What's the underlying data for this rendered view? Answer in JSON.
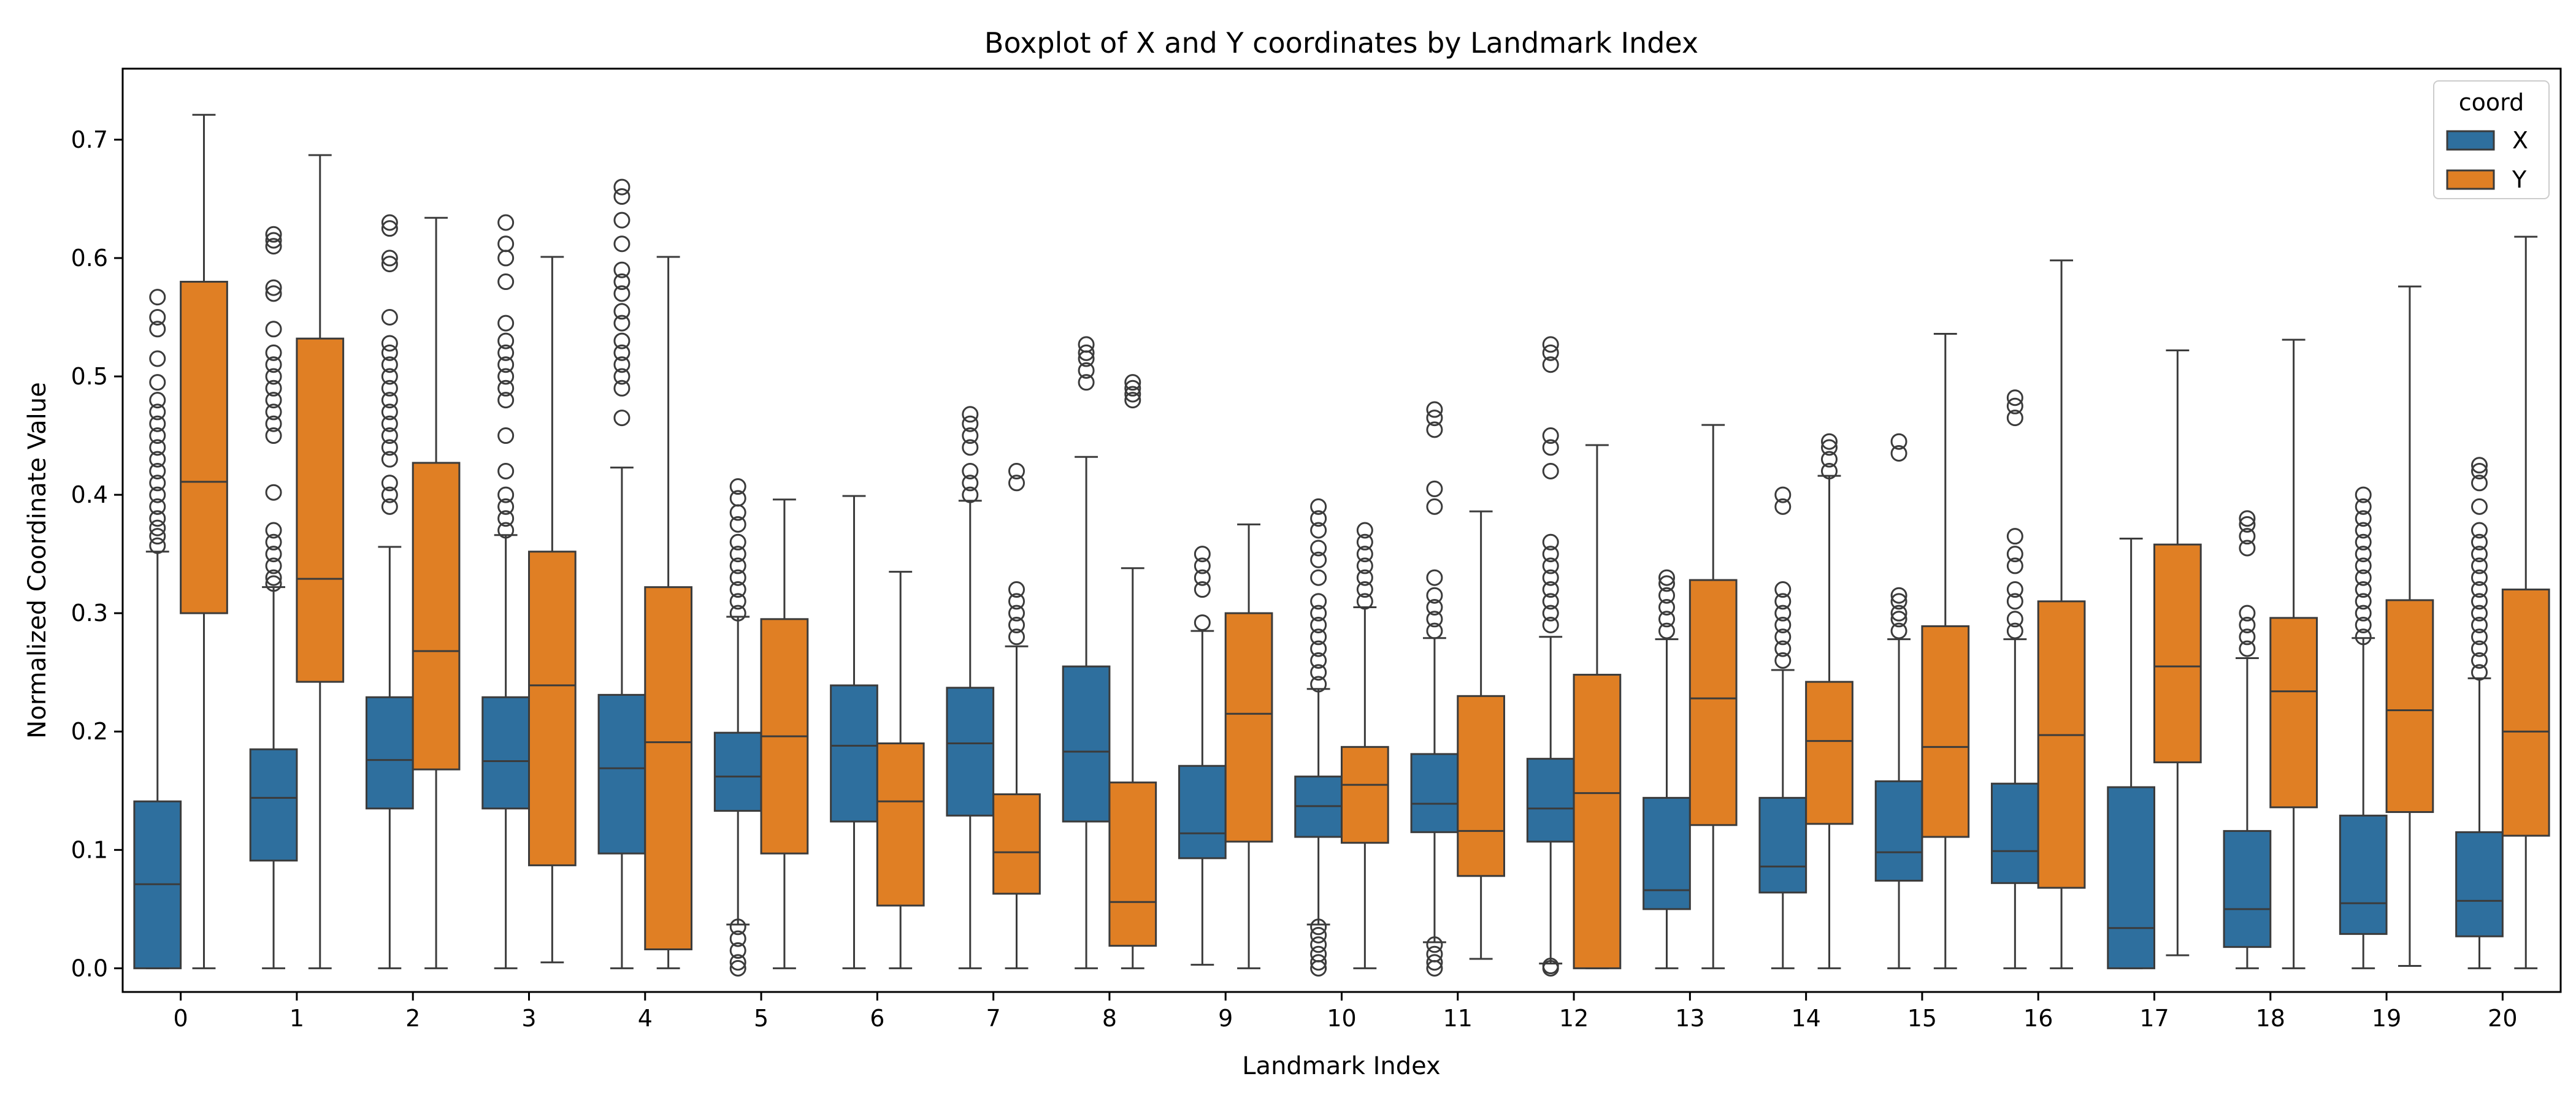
{
  "chart_data": {
    "type": "box",
    "title": "Boxplot of X and Y coordinates by Landmark Index",
    "xlabel": "Landmark Index",
    "ylabel": "Normalized Coordinate Value",
    "ylim": [
      -0.02,
      0.76
    ],
    "yticks": [
      "0.0",
      "0.1",
      "0.2",
      "0.3",
      "0.4",
      "0.5",
      "0.6",
      "0.7"
    ],
    "categories": [
      "0",
      "1",
      "2",
      "3",
      "4",
      "5",
      "6",
      "7",
      "8",
      "9",
      "10",
      "11",
      "12",
      "13",
      "14",
      "15",
      "16",
      "17",
      "18",
      "19",
      "20"
    ],
    "grid": false,
    "legend": {
      "title": "coord",
      "placement": "top-right"
    },
    "series": [
      {
        "name": "X",
        "color": "#2e6f9e",
        "boxes": [
          {
            "whisker_low": 0.0,
            "q1": 0.0,
            "median": 0.071,
            "q3": 0.141,
            "whisker_high": 0.352,
            "outliers": [
              0.357,
              0.365,
              0.372,
              0.38,
              0.39,
              0.4,
              0.41,
              0.42,
              0.43,
              0.44,
              0.45,
              0.46,
              0.47,
              0.48,
              0.495,
              0.515,
              0.54,
              0.55,
              0.567
            ]
          },
          {
            "whisker_low": 0.0,
            "q1": 0.091,
            "median": 0.144,
            "q3": 0.185,
            "whisker_high": 0.322,
            "outliers": [
              0.325,
              0.33,
              0.34,
              0.35,
              0.36,
              0.37,
              0.402,
              0.45,
              0.46,
              0.47,
              0.48,
              0.49,
              0.5,
              0.51,
              0.52,
              0.54,
              0.57,
              0.575,
              0.61,
              0.615,
              0.62
            ]
          },
          {
            "whisker_low": 0.0,
            "q1": 0.135,
            "median": 0.176,
            "q3": 0.229,
            "whisker_high": 0.356,
            "outliers": [
              0.39,
              0.4,
              0.41,
              0.43,
              0.44,
              0.45,
              0.46,
              0.47,
              0.48,
              0.49,
              0.5,
              0.51,
              0.52,
              0.528,
              0.55,
              0.595,
              0.6,
              0.625,
              0.63
            ]
          },
          {
            "whisker_low": 0.0,
            "q1": 0.135,
            "median": 0.175,
            "q3": 0.229,
            "whisker_high": 0.366,
            "outliers": [
              0.37,
              0.38,
              0.39,
              0.4,
              0.42,
              0.45,
              0.48,
              0.49,
              0.5,
              0.51,
              0.52,
              0.53,
              0.545,
              0.58,
              0.6,
              0.612,
              0.63
            ]
          },
          {
            "whisker_low": 0.0,
            "q1": 0.097,
            "median": 0.169,
            "q3": 0.231,
            "whisker_high": 0.423,
            "outliers": [
              0.465,
              0.49,
              0.5,
              0.51,
              0.52,
              0.53,
              0.545,
              0.555,
              0.57,
              0.58,
              0.59,
              0.612,
              0.632,
              0.652,
              0.66
            ]
          },
          {
            "whisker_low": 0.037,
            "q1": 0.133,
            "median": 0.162,
            "q3": 0.199,
            "whisker_high": 0.297,
            "outliers": [
              0.0,
              0.005,
              0.015,
              0.025,
              0.035,
              0.3,
              0.31,
              0.32,
              0.33,
              0.34,
              0.35,
              0.36,
              0.375,
              0.385,
              0.397,
              0.407
            ]
          },
          {
            "whisker_low": 0.0,
            "q1": 0.124,
            "median": 0.188,
            "q3": 0.239,
            "whisker_high": 0.399,
            "outliers": []
          },
          {
            "whisker_low": 0.0,
            "q1": 0.129,
            "median": 0.19,
            "q3": 0.237,
            "whisker_high": 0.395,
            "outliers": [
              0.4,
              0.41,
              0.42,
              0.44,
              0.45,
              0.46,
              0.468
            ]
          },
          {
            "whisker_low": 0.0,
            "q1": 0.124,
            "median": 0.183,
            "q3": 0.255,
            "whisker_high": 0.432,
            "outliers": [
              0.495,
              0.505,
              0.515,
              0.52,
              0.527
            ]
          },
          {
            "whisker_low": 0.003,
            "q1": 0.093,
            "median": 0.114,
            "q3": 0.171,
            "whisker_high": 0.285,
            "outliers": [
              0.292,
              0.32,
              0.33,
              0.34,
              0.35
            ]
          },
          {
            "whisker_low": 0.037,
            "q1": 0.111,
            "median": 0.137,
            "q3": 0.162,
            "whisker_high": 0.236,
            "outliers": [
              0.0,
              0.005,
              0.012,
              0.02,
              0.028,
              0.035,
              0.24,
              0.25,
              0.26,
              0.27,
              0.28,
              0.29,
              0.3,
              0.31,
              0.33,
              0.345,
              0.355,
              0.37,
              0.38,
              0.39
            ]
          },
          {
            "whisker_low": 0.022,
            "q1": 0.115,
            "median": 0.139,
            "q3": 0.181,
            "whisker_high": 0.279,
            "outliers": [
              0.0,
              0.005,
              0.012,
              0.02,
              0.285,
              0.295,
              0.305,
              0.315,
              0.33,
              0.39,
              0.405,
              0.455,
              0.465,
              0.472
            ]
          },
          {
            "whisker_low": 0.004,
            "q1": 0.107,
            "median": 0.135,
            "q3": 0.177,
            "whisker_high": 0.28,
            "outliers": [
              0.0,
              0.002,
              0.29,
              0.3,
              0.31,
              0.32,
              0.33,
              0.34,
              0.35,
              0.36,
              0.42,
              0.44,
              0.45,
              0.51,
              0.52,
              0.527
            ]
          },
          {
            "whisker_low": 0.0,
            "q1": 0.05,
            "median": 0.066,
            "q3": 0.144,
            "whisker_high": 0.278,
            "outliers": [
              0.285,
              0.295,
              0.305,
              0.315,
              0.325,
              0.33
            ]
          },
          {
            "whisker_low": 0.0,
            "q1": 0.064,
            "median": 0.086,
            "q3": 0.144,
            "whisker_high": 0.252,
            "outliers": [
              0.26,
              0.27,
              0.28,
              0.29,
              0.3,
              0.31,
              0.32,
              0.39,
              0.4
            ]
          },
          {
            "whisker_low": 0.0,
            "q1": 0.074,
            "median": 0.098,
            "q3": 0.158,
            "whisker_high": 0.278,
            "outliers": [
              0.285,
              0.295,
              0.3,
              0.31,
              0.315,
              0.435,
              0.445
            ]
          },
          {
            "whisker_low": 0.0,
            "q1": 0.072,
            "median": 0.099,
            "q3": 0.156,
            "whisker_high": 0.278,
            "outliers": [
              0.285,
              0.295,
              0.31,
              0.32,
              0.34,
              0.35,
              0.365,
              0.465,
              0.475,
              0.482
            ]
          },
          {
            "whisker_low": 0.0,
            "q1": 0.0,
            "median": 0.034,
            "q3": 0.153,
            "whisker_high": 0.363,
            "outliers": []
          },
          {
            "whisker_low": 0.0,
            "q1": 0.018,
            "median": 0.05,
            "q3": 0.116,
            "whisker_high": 0.262,
            "outliers": [
              0.27,
              0.28,
              0.29,
              0.3,
              0.355,
              0.365,
              0.375,
              0.38
            ]
          },
          {
            "whisker_low": 0.0,
            "q1": 0.029,
            "median": 0.055,
            "q3": 0.129,
            "whisker_high": 0.279,
            "outliers": [
              0.28,
              0.29,
              0.3,
              0.31,
              0.32,
              0.33,
              0.34,
              0.35,
              0.36,
              0.37,
              0.38,
              0.39,
              0.4
            ]
          },
          {
            "whisker_low": 0.0,
            "q1": 0.027,
            "median": 0.057,
            "q3": 0.115,
            "whisker_high": 0.245,
            "outliers": [
              0.25,
              0.26,
              0.27,
              0.28,
              0.29,
              0.3,
              0.31,
              0.32,
              0.33,
              0.34,
              0.35,
              0.36,
              0.37,
              0.39,
              0.41,
              0.42,
              0.425
            ]
          }
        ]
      },
      {
        "name": "Y",
        "color": "#e07f24",
        "boxes": [
          {
            "whisker_low": 0.0,
            "q1": 0.3,
            "median": 0.411,
            "q3": 0.58,
            "whisker_high": 0.721,
            "outliers": []
          },
          {
            "whisker_low": 0.0,
            "q1": 0.242,
            "median": 0.329,
            "q3": 0.532,
            "whisker_high": 0.687,
            "outliers": []
          },
          {
            "whisker_low": 0.0,
            "q1": 0.168,
            "median": 0.268,
            "q3": 0.427,
            "whisker_high": 0.634,
            "outliers": []
          },
          {
            "whisker_low": 0.005,
            "q1": 0.087,
            "median": 0.239,
            "q3": 0.352,
            "whisker_high": 0.601,
            "outliers": []
          },
          {
            "whisker_low": 0.0,
            "q1": 0.016,
            "median": 0.191,
            "q3": 0.322,
            "whisker_high": 0.601,
            "outliers": []
          },
          {
            "whisker_low": 0.0,
            "q1": 0.097,
            "median": 0.196,
            "q3": 0.295,
            "whisker_high": 0.396,
            "outliers": []
          },
          {
            "whisker_low": 0.0,
            "q1": 0.053,
            "median": 0.141,
            "q3": 0.19,
            "whisker_high": 0.335,
            "outliers": []
          },
          {
            "whisker_low": 0.0,
            "q1": 0.063,
            "median": 0.098,
            "q3": 0.147,
            "whisker_high": 0.272,
            "outliers": [
              0.28,
              0.29,
              0.3,
              0.31,
              0.32,
              0.41,
              0.42
            ]
          },
          {
            "whisker_low": 0.0,
            "q1": 0.019,
            "median": 0.056,
            "q3": 0.157,
            "whisker_high": 0.338,
            "outliers": [
              0.48,
              0.485,
              0.49,
              0.495
            ]
          },
          {
            "whisker_low": 0.0,
            "q1": 0.107,
            "median": 0.215,
            "q3": 0.3,
            "whisker_high": 0.375,
            "outliers": []
          },
          {
            "whisker_low": 0.0,
            "q1": 0.106,
            "median": 0.155,
            "q3": 0.187,
            "whisker_high": 0.305,
            "outliers": [
              0.31,
              0.32,
              0.33,
              0.34,
              0.35,
              0.36,
              0.37
            ]
          },
          {
            "whisker_low": 0.008,
            "q1": 0.078,
            "median": 0.116,
            "q3": 0.23,
            "whisker_high": 0.386,
            "outliers": []
          },
          {
            "whisker_low": 0.0,
            "q1": 0.0,
            "median": 0.148,
            "q3": 0.248,
            "whisker_high": 0.442,
            "outliers": []
          },
          {
            "whisker_low": 0.0,
            "q1": 0.121,
            "median": 0.228,
            "q3": 0.328,
            "whisker_high": 0.459,
            "outliers": []
          },
          {
            "whisker_low": 0.0,
            "q1": 0.122,
            "median": 0.192,
            "q3": 0.242,
            "whisker_high": 0.416,
            "outliers": [
              0.42,
              0.43,
              0.44,
              0.445
            ]
          },
          {
            "whisker_low": 0.0,
            "q1": 0.111,
            "median": 0.187,
            "q3": 0.289,
            "whisker_high": 0.536,
            "outliers": []
          },
          {
            "whisker_low": 0.0,
            "q1": 0.068,
            "median": 0.197,
            "q3": 0.31,
            "whisker_high": 0.598,
            "outliers": []
          },
          {
            "whisker_low": 0.011,
            "q1": 0.174,
            "median": 0.255,
            "q3": 0.358,
            "whisker_high": 0.522,
            "outliers": []
          },
          {
            "whisker_low": 0.0,
            "q1": 0.136,
            "median": 0.234,
            "q3": 0.296,
            "whisker_high": 0.531,
            "outliers": []
          },
          {
            "whisker_low": 0.002,
            "q1": 0.132,
            "median": 0.218,
            "q3": 0.311,
            "whisker_high": 0.576,
            "outliers": []
          },
          {
            "whisker_low": 0.0,
            "q1": 0.112,
            "median": 0.2,
            "q3": 0.32,
            "whisker_high": 0.618,
            "outliers": []
          }
        ]
      }
    ]
  }
}
